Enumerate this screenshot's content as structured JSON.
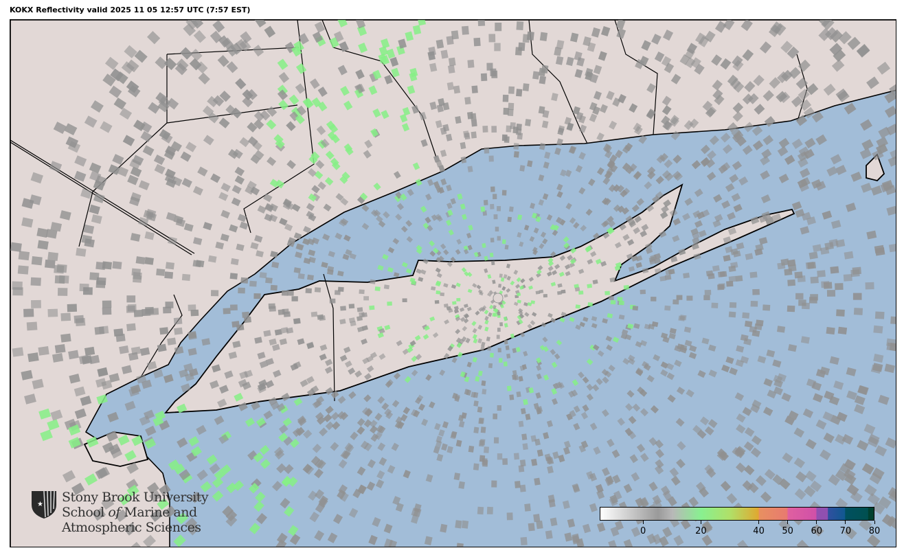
{
  "title": "KOKX Reflectivity valid 2025 11 05 12:57 UTC (7:57 EST)",
  "map": {
    "radar_site": "KOKX",
    "colors": {
      "land": "#e2d8d6",
      "water": "#a2bdd8",
      "border": "#000000",
      "no_echo": "#909090",
      "light_echo": "#86f086"
    }
  },
  "colorbar": {
    "range": [
      -15,
      80
    ],
    "ticks": [
      {
        "value": 0,
        "label": "0"
      },
      {
        "value": 20,
        "label": "20"
      },
      {
        "value": 40,
        "label": "40"
      },
      {
        "value": 50,
        "label": "50"
      },
      {
        "value": 60,
        "label": "60"
      },
      {
        "value": 70,
        "label": "70"
      },
      {
        "value": 80,
        "label": "80"
      }
    ],
    "stops": [
      {
        "value": -15,
        "color": "#ffffff"
      },
      {
        "value": 5,
        "color": "#9a9a9a"
      },
      {
        "value": 10,
        "color": "#b8b8b8"
      },
      {
        "value": 20,
        "color": "#88f090"
      },
      {
        "value": 30,
        "color": "#b0e068"
      },
      {
        "value": 40,
        "color": "#e0a830"
      },
      {
        "value": 40.1,
        "color": "#e89060"
      },
      {
        "value": 50,
        "color": "#e87a70"
      },
      {
        "value": 50.1,
        "color": "#e060a0"
      },
      {
        "value": 60,
        "color": "#d050a8"
      },
      {
        "value": 60.1,
        "color": "#9050b0"
      },
      {
        "value": 64,
        "color": "#9050b0"
      },
      {
        "value": 64.1,
        "color": "#3050a0"
      },
      {
        "value": 70,
        "color": "#105890"
      },
      {
        "value": 70.1,
        "color": "#005060"
      },
      {
        "value": 78,
        "color": "#005050"
      },
      {
        "value": 78.1,
        "color": "#004030"
      },
      {
        "value": 80,
        "color": "#004030"
      }
    ]
  },
  "logo": {
    "line1": "Stony Brook University",
    "line2a": "School ",
    "line2b": "of",
    "line2c": " Marine and",
    "line3": "Atmospheric Sciences"
  }
}
